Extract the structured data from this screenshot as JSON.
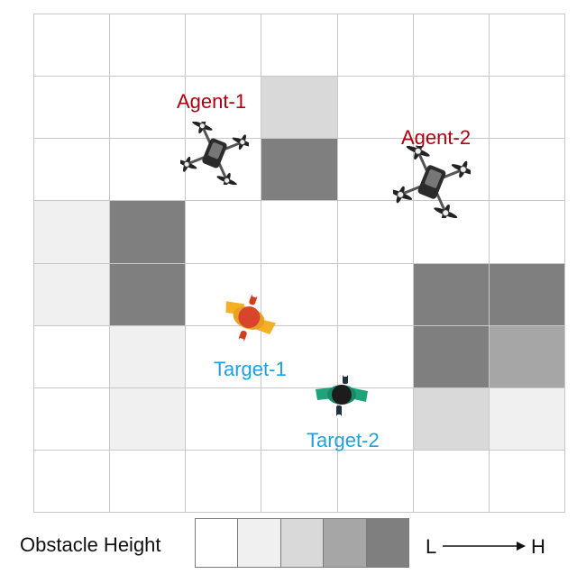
{
  "grid": {
    "columns": 7,
    "rows": 8,
    "obstacles": [
      {
        "row": 1,
        "col": 3,
        "level": 2
      },
      {
        "row": 2,
        "col": 3,
        "level": 4
      },
      {
        "row": 3,
        "col": 0,
        "level": 1
      },
      {
        "row": 3,
        "col": 1,
        "level": 4
      },
      {
        "row": 4,
        "col": 0,
        "level": 1
      },
      {
        "row": 4,
        "col": 1,
        "level": 4
      },
      {
        "row": 4,
        "col": 5,
        "level": 4
      },
      {
        "row": 4,
        "col": 6,
        "level": 4
      },
      {
        "row": 5,
        "col": 1,
        "level": 1
      },
      {
        "row": 5,
        "col": 5,
        "level": 4
      },
      {
        "row": 5,
        "col": 6,
        "level": 3
      },
      {
        "row": 6,
        "col": 1,
        "level": 1
      },
      {
        "row": 6,
        "col": 5,
        "level": 2
      },
      {
        "row": 6,
        "col": 6,
        "level": 1
      }
    ]
  },
  "agents": [
    {
      "label": "Agent-1"
    },
    {
      "label": "Agent-2"
    }
  ],
  "targets": [
    {
      "label": "Target-1"
    },
    {
      "label": "Target-2"
    }
  ],
  "legend": {
    "title": "Obstacle Height",
    "low_label": "L",
    "high_label": "H",
    "levels": [
      "#ffffff",
      "#f0f0f0",
      "#d9d9d9",
      "#a6a6a6",
      "#7f7f7f"
    ]
  },
  "colors": {
    "agent_label": "#b00010",
    "target_label": "#1fa0e0",
    "grid_line": "#c8c8c8"
  }
}
